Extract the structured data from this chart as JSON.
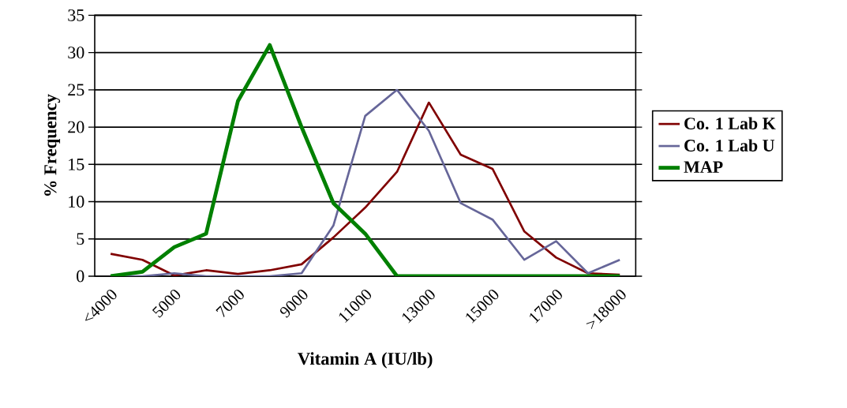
{
  "chart_data": {
    "type": "line",
    "xlabel": "Vitamin A (IU/lb)",
    "ylabel": "% Frequency",
    "categories": [
      "<4000",
      null,
      "5000",
      null,
      "7000",
      null,
      "9000",
      null,
      "11000",
      null,
      "13000",
      null,
      "15000",
      null,
      "17000",
      null,
      ">18000"
    ],
    "series": [
      {
        "name": "Co. 1 Lab K",
        "color": "#800000",
        "values": [
          3.0,
          2.2,
          0.1,
          0.8,
          0.3,
          0.8,
          1.6,
          5.2,
          9.2,
          14,
          23.3,
          16.3,
          14.4,
          6,
          2.5,
          0.4,
          0.2
        ]
      },
      {
        "name": "Co. 1 Lab U",
        "color": "#666699",
        "values": [
          0,
          0,
          0.4,
          0,
          0,
          0,
          0.4,
          6.8,
          21.5,
          25,
          19.5,
          9.8,
          7.6,
          2.2,
          4.7,
          0.4,
          2.2
        ]
      },
      {
        "name": "MAP",
        "color": "#008000",
        "values": [
          0,
          0.6,
          3.9,
          5.7,
          23.5,
          31,
          20,
          9.8,
          5.7,
          0,
          0,
          0,
          0,
          0,
          0,
          0,
          0
        ]
      }
    ],
    "ylim": [
      0,
      35
    ],
    "yticks": [
      0,
      5,
      10,
      15,
      20,
      25,
      30,
      35
    ],
    "grid": "y",
    "legend": "right"
  }
}
